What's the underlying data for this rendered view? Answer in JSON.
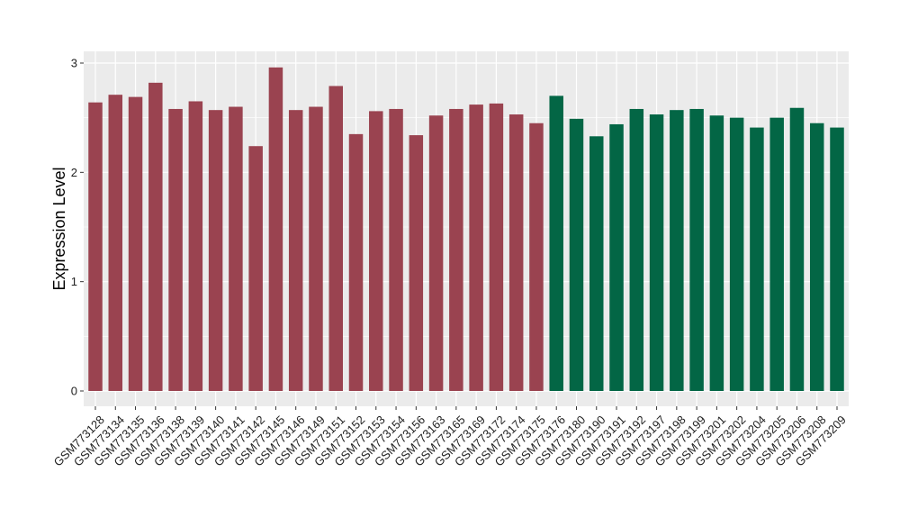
{
  "chart_data": {
    "type": "bar",
    "title": "",
    "xlabel": "",
    "ylabel": "Expression Level",
    "ylim": [
      0,
      3.1
    ],
    "yticks": [
      0,
      1,
      2,
      3
    ],
    "grid": true,
    "legend": "none",
    "categories": [
      "GSM773128",
      "GSM773134",
      "GSM773135",
      "GSM773136",
      "GSM773138",
      "GSM773139",
      "GSM773140",
      "GSM773141",
      "GSM773142",
      "GSM773145",
      "GSM773146",
      "GSM773149",
      "GSM773151",
      "GSM773152",
      "GSM773153",
      "GSM773154",
      "GSM773156",
      "GSM773163",
      "GSM773165",
      "GSM773169",
      "GSM773172",
      "GSM773174",
      "GSM773175",
      "GSM773176",
      "GSM773180",
      "GSM773190",
      "GSM773191",
      "GSM773192",
      "GSM773197",
      "GSM773198",
      "GSM773199",
      "GSM773201",
      "GSM773202",
      "GSM773204",
      "GSM773205",
      "GSM773206",
      "GSM773208",
      "GSM773209"
    ],
    "values": [
      2.64,
      2.71,
      2.69,
      2.82,
      2.58,
      2.65,
      2.57,
      2.6,
      2.24,
      2.96,
      2.57,
      2.6,
      2.79,
      2.35,
      2.56,
      2.58,
      2.34,
      2.52,
      2.58,
      2.62,
      2.63,
      2.53,
      2.45,
      2.7,
      2.49,
      2.33,
      2.44,
      2.58,
      2.53,
      2.57,
      2.58,
      2.52,
      2.5,
      2.41,
      2.5,
      2.59,
      2.45,
      2.41
    ],
    "groups": [
      0,
      0,
      0,
      0,
      0,
      0,
      0,
      0,
      0,
      0,
      0,
      0,
      0,
      0,
      0,
      0,
      0,
      0,
      0,
      0,
      0,
      0,
      0,
      1,
      1,
      1,
      1,
      1,
      1,
      1,
      1,
      1,
      1,
      1,
      1,
      1,
      1,
      1
    ],
    "group_colors": [
      "#9a4350",
      "#036645"
    ],
    "panel_background": "#ebebeb",
    "grid_color": "#ffffff"
  }
}
